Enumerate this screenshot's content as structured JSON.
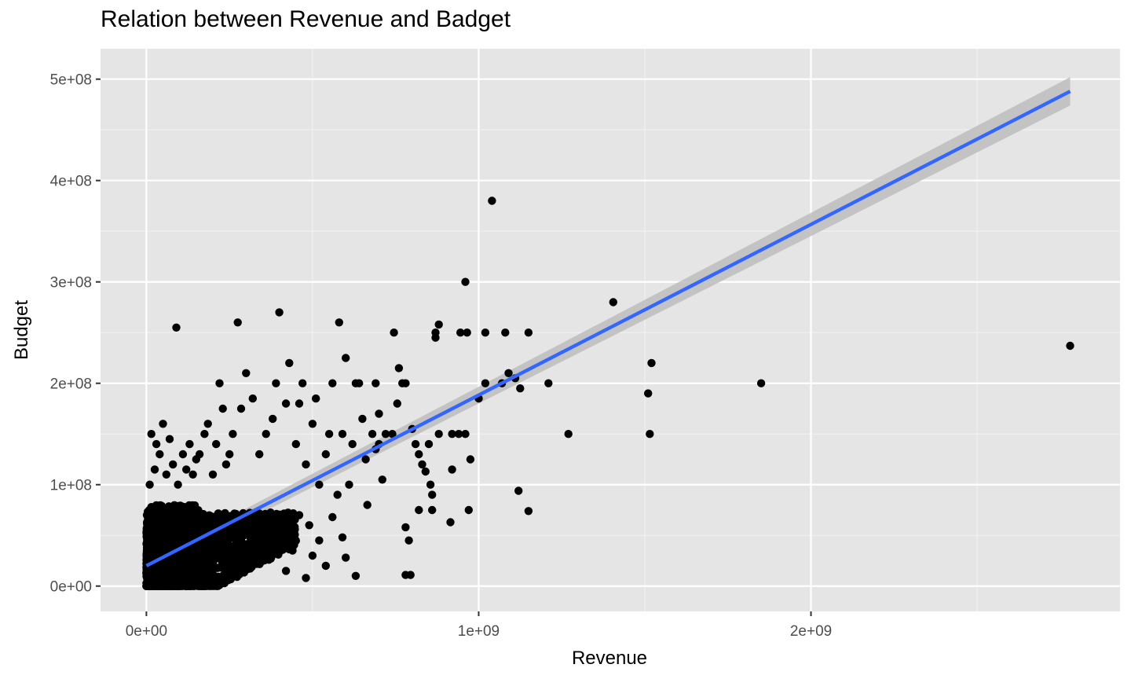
{
  "chart_data": {
    "type": "scatter",
    "title": "Relation between Revenue and Badget",
    "xlabel": "Revenue",
    "ylabel": "Budget",
    "xlim": [
      -138000000,
      2930000000
    ],
    "ylim": [
      -25000000,
      530000000
    ],
    "x_ticks": [
      {
        "value": 0,
        "label": "0e+00"
      },
      {
        "value": 1000000000,
        "label": "1e+09"
      },
      {
        "value": 2000000000,
        "label": "2e+09"
      }
    ],
    "y_ticks": [
      {
        "value": 0,
        "label": "0e+00"
      },
      {
        "value": 100000000,
        "label": "1e+08"
      },
      {
        "value": 200000000,
        "label": "2e+08"
      },
      {
        "value": 300000000,
        "label": "3e+08"
      },
      {
        "value": 400000000,
        "label": "4e+08"
      },
      {
        "value": 500000000,
        "label": "5e+08"
      }
    ],
    "x_minor_ticks": [
      500000000,
      1500000000,
      2500000000
    ],
    "y_minor_ticks": [
      50000000,
      150000000,
      250000000,
      350000000,
      450000000
    ],
    "grid": true,
    "background": "#e5e5e5",
    "point_color": "#000000",
    "fit_line": {
      "type": "linear",
      "color": "#3366ff",
      "band_color": "#bdbdbd",
      "x": [
        0,
        2780000000
      ],
      "y": [
        20000000,
        488000000
      ],
      "se_lower": [
        15000000,
        474000000
      ],
      "se_upper": [
        25000000,
        502000000
      ]
    },
    "cluster": {
      "x_max": 450000000,
      "y_max": 95000000
    },
    "points": [
      [
        2780000000,
        237000000
      ],
      [
        1850000000,
        200000000
      ],
      [
        1520000000,
        220000000
      ],
      [
        1510000000,
        190000000
      ],
      [
        1515000000,
        150000000
      ],
      [
        1405000000,
        280000000
      ],
      [
        1270000000,
        150000000
      ],
      [
        1210000000,
        200000000
      ],
      [
        1150000000,
        250000000
      ],
      [
        1150000000,
        74000000
      ],
      [
        1120000000,
        94000000
      ],
      [
        1125000000,
        195000000
      ],
      [
        1110000000,
        205000000
      ],
      [
        1090000000,
        210000000
      ],
      [
        1070000000,
        200000000
      ],
      [
        1080000000,
        250000000
      ],
      [
        1040000000,
        380000000
      ],
      [
        1020000000,
        250000000
      ],
      [
        1020000000,
        200000000
      ],
      [
        1000000000,
        185000000
      ],
      [
        960000000,
        300000000
      ],
      [
        965000000,
        250000000
      ],
      [
        945000000,
        250000000
      ],
      [
        970000000,
        75000000
      ],
      [
        975000000,
        125000000
      ],
      [
        960000000,
        150000000
      ],
      [
        940000000,
        150000000
      ],
      [
        920000000,
        150000000
      ],
      [
        920000000,
        115000000
      ],
      [
        915000000,
        63000000
      ],
      [
        880000000,
        150000000
      ],
      [
        880000000,
        258000000
      ],
      [
        870000000,
        250000000
      ],
      [
        870000000,
        245000000
      ],
      [
        860000000,
        75000000
      ],
      [
        855000000,
        100000000
      ],
      [
        860000000,
        90000000
      ],
      [
        840000000,
        113000000
      ],
      [
        850000000,
        140000000
      ],
      [
        820000000,
        130000000
      ],
      [
        820000000,
        75000000
      ],
      [
        830000000,
        120000000
      ],
      [
        810000000,
        140000000
      ],
      [
        800000000,
        155000000
      ],
      [
        790000000,
        45000000
      ],
      [
        780000000,
        58000000
      ],
      [
        780000000,
        11000000
      ],
      [
        795000000,
        11000000
      ],
      [
        770000000,
        200000000
      ],
      [
        780000000,
        200000000
      ],
      [
        760000000,
        215000000
      ],
      [
        755000000,
        180000000
      ],
      [
        745000000,
        250000000
      ],
      [
        740000000,
        150000000
      ],
      [
        720000000,
        150000000
      ],
      [
        700000000,
        140000000
      ],
      [
        710000000,
        105000000
      ],
      [
        700000000,
        170000000
      ],
      [
        690000000,
        135000000
      ],
      [
        690000000,
        200000000
      ],
      [
        680000000,
        150000000
      ],
      [
        660000000,
        125000000
      ],
      [
        665000000,
        80000000
      ],
      [
        650000000,
        165000000
      ],
      [
        640000000,
        200000000
      ],
      [
        630000000,
        200000000
      ],
      [
        620000000,
        140000000
      ],
      [
        610000000,
        100000000
      ],
      [
        600000000,
        225000000
      ],
      [
        590000000,
        150000000
      ],
      [
        580000000,
        260000000
      ],
      [
        575000000,
        90000000
      ],
      [
        560000000,
        200000000
      ],
      [
        550000000,
        150000000
      ],
      [
        540000000,
        130000000
      ],
      [
        520000000,
        100000000
      ],
      [
        510000000,
        185000000
      ],
      [
        500000000,
        160000000
      ],
      [
        480000000,
        120000000
      ],
      [
        470000000,
        200000000
      ],
      [
        460000000,
        180000000
      ],
      [
        450000000,
        140000000
      ],
      [
        430000000,
        220000000
      ],
      [
        420000000,
        180000000
      ],
      [
        400000000,
        270000000
      ],
      [
        390000000,
        200000000
      ],
      [
        380000000,
        165000000
      ],
      [
        360000000,
        150000000
      ],
      [
        340000000,
        130000000
      ],
      [
        320000000,
        185000000
      ],
      [
        300000000,
        210000000
      ],
      [
        285000000,
        175000000
      ],
      [
        275000000,
        260000000
      ],
      [
        260000000,
        150000000
      ],
      [
        250000000,
        130000000
      ],
      [
        240000000,
        120000000
      ],
      [
        230000000,
        175000000
      ],
      [
        220000000,
        200000000
      ],
      [
        210000000,
        140000000
      ],
      [
        200000000,
        110000000
      ],
      [
        185000000,
        160000000
      ],
      [
        175000000,
        150000000
      ],
      [
        160000000,
        130000000
      ],
      [
        150000000,
        125000000
      ],
      [
        140000000,
        110000000
      ],
      [
        130000000,
        140000000
      ],
      [
        120000000,
        115000000
      ],
      [
        110000000,
        130000000
      ],
      [
        95000000,
        100000000
      ],
      [
        90000000,
        255000000
      ],
      [
        80000000,
        120000000
      ],
      [
        70000000,
        145000000
      ],
      [
        60000000,
        110000000
      ],
      [
        50000000,
        160000000
      ],
      [
        40000000,
        130000000
      ],
      [
        30000000,
        140000000
      ],
      [
        25000000,
        115000000
      ],
      [
        15000000,
        150000000
      ],
      [
        10000000,
        100000000
      ],
      [
        630000000,
        10000000
      ],
      [
        600000000,
        28000000
      ],
      [
        590000000,
        48000000
      ],
      [
        560000000,
        68000000
      ],
      [
        540000000,
        20000000
      ],
      [
        520000000,
        45000000
      ],
      [
        500000000,
        30000000
      ],
      [
        490000000,
        60000000
      ],
      [
        480000000,
        8000000
      ],
      [
        460000000,
        70000000
      ],
      [
        440000000,
        35000000
      ],
      [
        430000000,
        50000000
      ],
      [
        420000000,
        15000000
      ]
    ]
  }
}
